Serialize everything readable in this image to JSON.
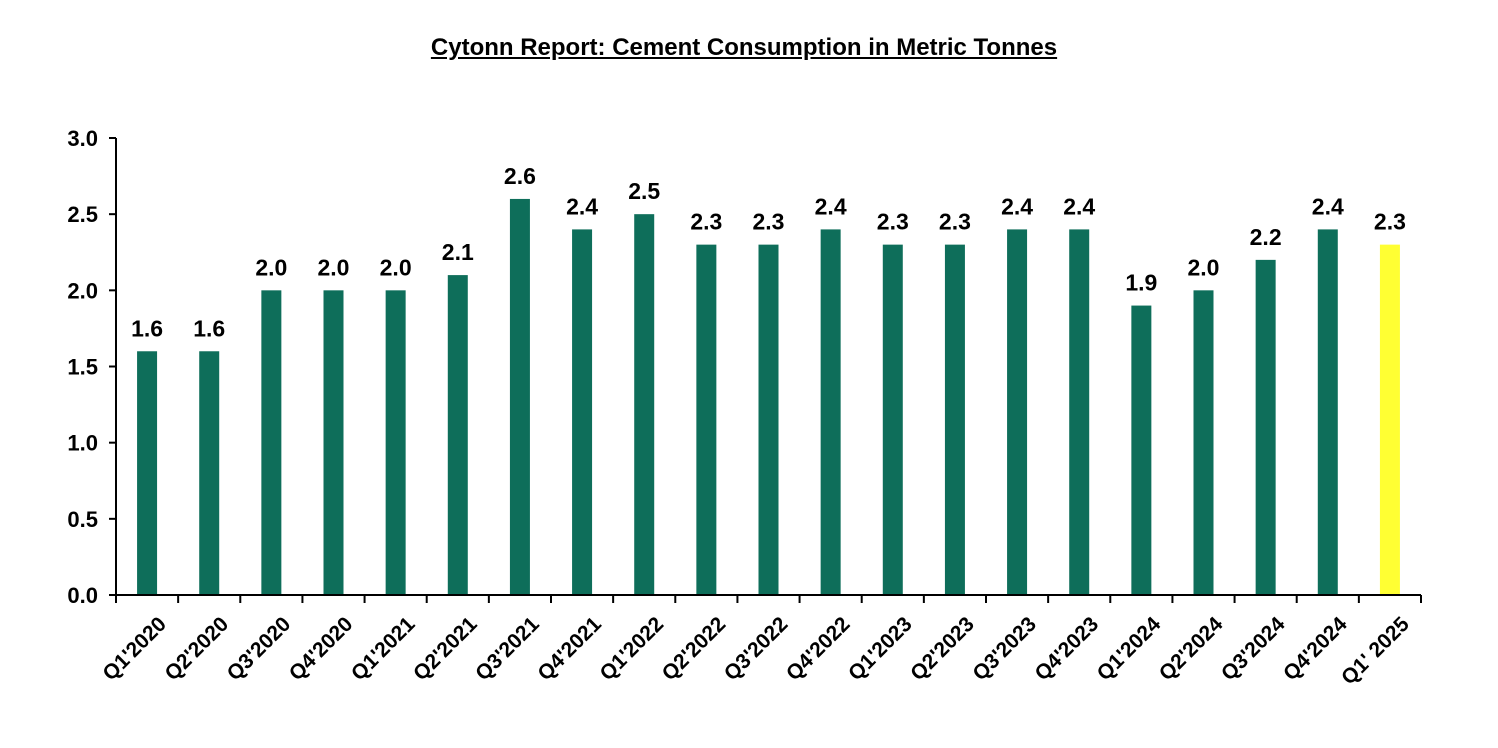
{
  "chart_data": {
    "type": "bar",
    "title": "Cytonn Report: Cement Consumption in Metric Tonnes",
    "xlabel": "",
    "ylabel": "",
    "ylim": [
      0,
      3.0
    ],
    "yticks": [
      0.0,
      0.5,
      1.0,
      1.5,
      2.0,
      2.5,
      3.0
    ],
    "ytick_labels": [
      "0.0",
      "0.5",
      "1.0",
      "1.5",
      "2.0",
      "2.5",
      "3.0"
    ],
    "categories": [
      "Q1'2020",
      "Q2'2020",
      "Q3'2020",
      "Q4'2020",
      "Q1'2021",
      "Q2'2021",
      "Q3'2021",
      "Q4'2021",
      "Q1'2022",
      "Q2'2022",
      "Q3'2022",
      "Q4'2022",
      "Q1'2023",
      "Q2'2023",
      "Q3'2023",
      "Q4'2023",
      "Q1'2024",
      "Q2'2024",
      "Q3'2024",
      "Q4'2024",
      "Q1' 2025"
    ],
    "values": [
      1.6,
      1.6,
      2.0,
      2.0,
      2.0,
      2.1,
      2.6,
      2.4,
      2.5,
      2.3,
      2.3,
      2.4,
      2.3,
      2.3,
      2.4,
      2.4,
      1.9,
      2.0,
      2.2,
      2.4,
      2.3
    ],
    "data_labels": [
      "1.6",
      "1.6",
      "2.0",
      "2.0",
      "2.0",
      "2.1",
      "2.6",
      "2.4",
      "2.5",
      "2.3",
      "2.3",
      "2.4",
      "2.3",
      "2.3",
      "2.4",
      "2.4",
      "1.9",
      "2.0",
      "2.2",
      "2.4",
      "2.3"
    ],
    "grid": false,
    "legend": "none",
    "colors": {
      "default_bar": "#0e6e5a",
      "highlight_bar": "#ffff33",
      "highlight_index": 20
    }
  }
}
